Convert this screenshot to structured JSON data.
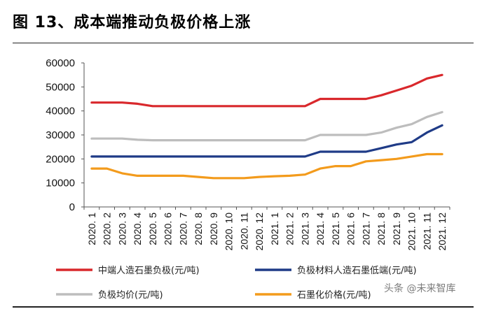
{
  "figure": {
    "title": "图 13、成本端推动负极价格上涨",
    "watermark": "头条 @未来智库"
  },
  "chart_data": {
    "type": "line",
    "title": "图 13、成本端推动负极价格上涨",
    "xlabel": "",
    "ylabel": "",
    "ylim": [
      0,
      60000
    ],
    "yticks": [
      0,
      10000,
      20000,
      30000,
      40000,
      50000,
      60000
    ],
    "ytick_labels": [
      "0",
      "10000",
      "20000",
      "30000",
      "40000",
      "50000",
      "60000"
    ],
    "categories": [
      "2020. 1",
      "2020. 2",
      "2020. 3",
      "2020. 4",
      "2020. 5",
      "2020. 6",
      "2020. 7",
      "2020. 8",
      "2020. 9",
      "2020. 10",
      "2020. 11",
      "2020. 12",
      "2021. 1",
      "2021. 2",
      "2021. 3",
      "2021. 4",
      "2021. 5",
      "2021. 6",
      "2021. 7",
      "2021. 8",
      "2021. 9",
      "2021. 10",
      "2021. 11",
      "2021. 12"
    ],
    "grid": false,
    "legend_position": "bottom",
    "series": [
      {
        "name": "中端人造石墨负极(元/吨)",
        "color": "#d9282c",
        "values": [
          43500,
          43500,
          43500,
          43000,
          42000,
          42000,
          42000,
          42000,
          42000,
          42000,
          42000,
          42000,
          42000,
          42000,
          42000,
          45000,
          45000,
          45000,
          45000,
          46500,
          48500,
          50500,
          53500,
          55000
        ]
      },
      {
        "name": "负极材料人造石墨低端(元/吨)",
        "color": "#1f3b87",
        "values": [
          21000,
          21000,
          21000,
          21000,
          21000,
          21000,
          21000,
          21000,
          21000,
          21000,
          21000,
          21000,
          21000,
          21000,
          21000,
          23000,
          23000,
          23000,
          23000,
          24500,
          26000,
          27000,
          31000,
          34000
        ]
      },
      {
        "name": "负极均价(元/吨)",
        "color": "#bdbdbd",
        "values": [
          28500,
          28500,
          28500,
          28000,
          27800,
          27800,
          27800,
          27800,
          27800,
          27800,
          27800,
          27800,
          27800,
          27800,
          27800,
          30000,
          30000,
          30000,
          30000,
          31000,
          33000,
          34500,
          37500,
          39500
        ]
      },
      {
        "name": "石墨化价格(元/吨)",
        "color": "#f39b1c",
        "values": [
          16000,
          16000,
          14000,
          13000,
          13000,
          13000,
          13000,
          12500,
          12000,
          12000,
          12000,
          12500,
          12800,
          13000,
          13500,
          16000,
          17000,
          17000,
          19000,
          19500,
          20000,
          21000,
          22000,
          22000
        ]
      }
    ]
  }
}
